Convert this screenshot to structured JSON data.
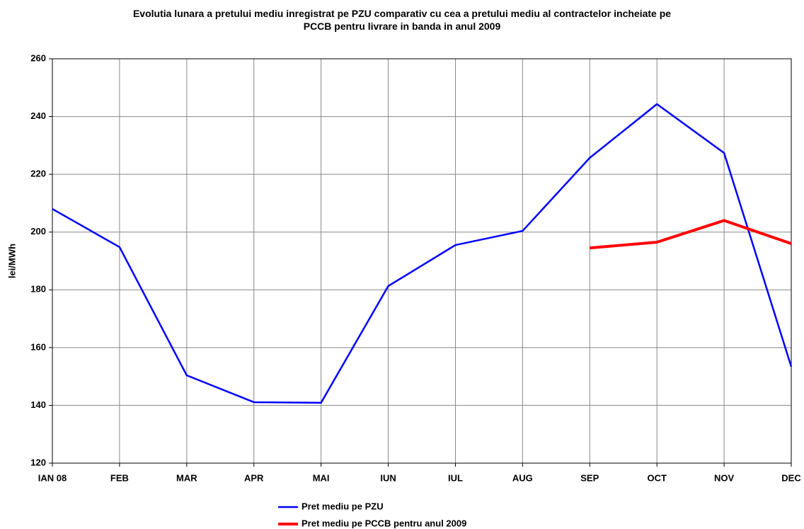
{
  "chart_data": {
    "type": "line",
    "title": "Evolutia lunara a pretului mediu inregistrat pe PZU comparativ cu cea a pretului mediu al contractelor incheiate pe PCCB pentru livrare in banda in anul 2009",
    "y_label": "lei/MWh",
    "categories": [
      "IAN 08",
      "FEB",
      "MAR",
      "APR",
      "MAI",
      "IUN",
      "IUL",
      "AUG",
      "SEP",
      "OCT",
      "NOV",
      "DEC"
    ],
    "series": [
      {
        "name": "Pret mediu pe PZU",
        "color": "#0000ff",
        "values": [
          208,
          194.8,
          150.4,
          141.1,
          140.9,
          181.3,
          195.5,
          200.4,
          225.7,
          244.3,
          227.4,
          153.4
        ]
      },
      {
        "name": "Pret mediu pe PCCB pentru anul 2009",
        "color": "#ff0000",
        "values": [
          null,
          null,
          null,
          null,
          null,
          null,
          null,
          null,
          194.5,
          196.5,
          204,
          196
        ]
      }
    ],
    "ylim": [
      120,
      260
    ],
    "yticks": [
      120,
      140,
      160,
      180,
      200,
      220,
      240,
      260
    ],
    "grid": true
  }
}
